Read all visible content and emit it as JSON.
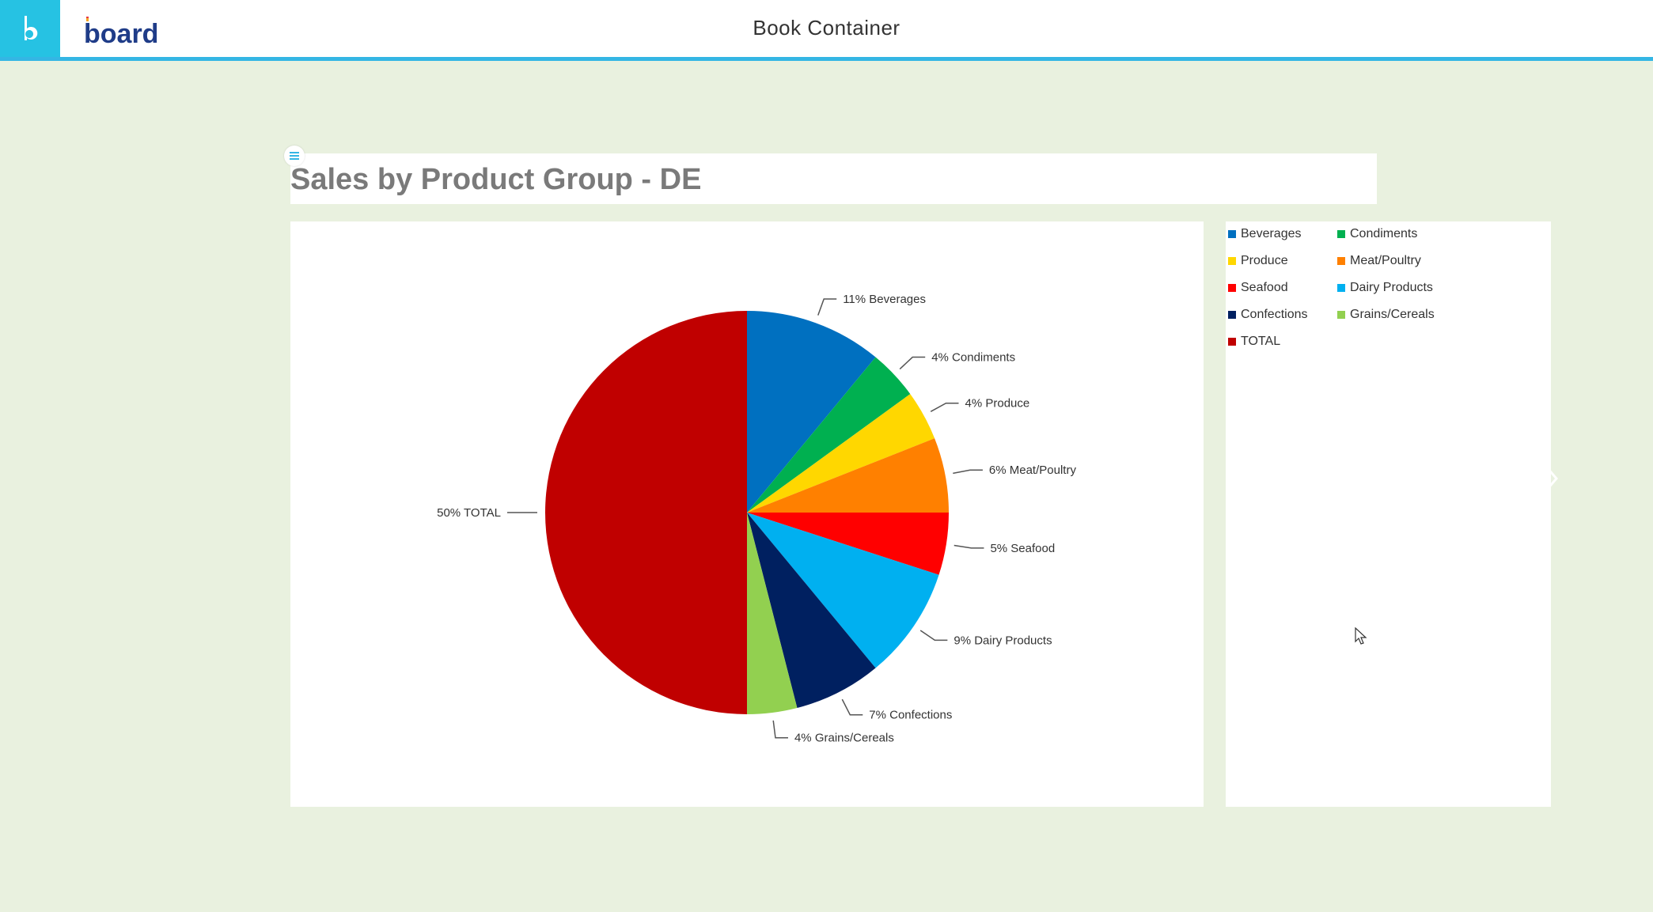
{
  "header": {
    "app_icon": "board-b-icon",
    "logo_text": "board",
    "title": "Book Container"
  },
  "colors": {
    "accent": "#34b6e4",
    "app_tile": "#26c2e3",
    "background": "#e9f1df"
  },
  "chart": {
    "title": "Sales by Product Group - DE"
  },
  "chart_data": {
    "type": "pie",
    "title": "Sales by Product Group - DE",
    "slices": [
      {
        "name": "Beverages",
        "value": 11,
        "label": "11% Beverages",
        "color": "#0070c0"
      },
      {
        "name": "Condiments",
        "value": 4,
        "label": "4% Condiments",
        "color": "#00b050"
      },
      {
        "name": "Produce",
        "value": 4,
        "label": "4% Produce",
        "color": "#ffd700"
      },
      {
        "name": "Meat/Poultry",
        "value": 6,
        "label": "6% Meat/Poultry",
        "color": "#ff8000"
      },
      {
        "name": "Seafood",
        "value": 5,
        "label": "5% Seafood",
        "color": "#ff0000"
      },
      {
        "name": "Dairy Products",
        "value": 9,
        "label": "9% Dairy Products",
        "color": "#00b0f0"
      },
      {
        "name": "Confections",
        "value": 7,
        "label": "7% Confections",
        "color": "#002060"
      },
      {
        "name": "Grains/Cereals",
        "value": 4,
        "label": "4% Grains/Cereals",
        "color": "#92d050"
      },
      {
        "name": "TOTAL",
        "value": 50,
        "label": "50% TOTAL",
        "color": "#c00000"
      }
    ],
    "legend_position": "right"
  },
  "legend": {
    "items": [
      "Beverages",
      "Condiments",
      "Produce",
      "Meat/Poultry",
      "Seafood",
      "Dairy Products",
      "Confections",
      "Grains/Cereals",
      "TOTAL"
    ]
  },
  "icons": {
    "menu": "hamburger-menu-icon",
    "next": "chevron-right-icon",
    "cursor": "mouse-pointer-icon"
  }
}
